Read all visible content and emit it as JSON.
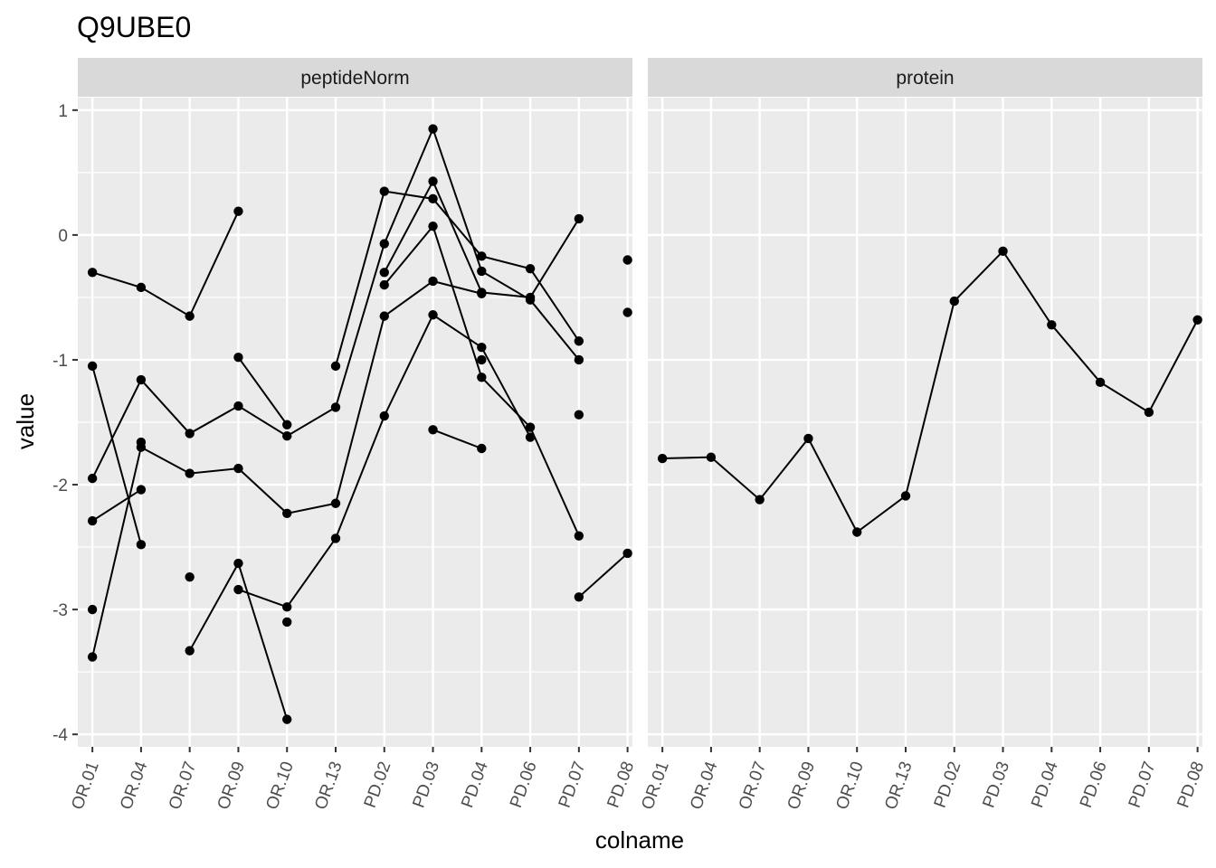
{
  "chart_data": {
    "type": "line",
    "title": "Q9UBE0",
    "xlabel": "colname",
    "ylabel": "value",
    "ylim": [
      -4.1,
      1.1
    ],
    "yticks": [
      1,
      0,
      -1,
      -2,
      -3,
      -4
    ],
    "grid": true,
    "categories": [
      "OR.01",
      "OR.04",
      "OR.07",
      "OR.09",
      "OR.10",
      "OR.13",
      "PD.02",
      "PD.03",
      "PD.04",
      "PD.06",
      "PD.07",
      "PD.08"
    ],
    "panels": [
      {
        "name": "peptideNorm",
        "series": [
          {
            "values": [
              -0.3,
              -0.42,
              -0.65,
              0.19,
              null,
              null,
              null,
              null,
              null,
              null,
              null,
              null
            ]
          },
          {
            "values": [
              null,
              null,
              null,
              null,
              null,
              -1.05,
              0.35,
              0.29,
              -0.17,
              -0.27,
              -0.85,
              null
            ]
          },
          {
            "values": [
              -1.95,
              -1.16,
              -1.59,
              -1.37,
              -1.61,
              -1.38,
              -0.07,
              0.85,
              -0.29,
              -0.52,
              -1.0,
              null
            ]
          },
          {
            "values": [
              -2.29,
              -2.04,
              null,
              -0.98,
              -1.52,
              null,
              -0.3,
              0.43,
              -0.46,
              -0.5,
              0.13,
              null
            ]
          },
          {
            "values": [
              -1.05,
              -2.48,
              null,
              null,
              null,
              null,
              -0.4,
              0.07,
              -1.14,
              -1.54,
              -2.41,
              null
            ]
          },
          {
            "values": [
              -3.38,
              -1.7,
              -1.91,
              -1.87,
              -2.23,
              -2.15,
              -0.65,
              -0.37,
              -0.47,
              null,
              null,
              null
            ]
          },
          {
            "values": [
              null,
              -1.66,
              null,
              null,
              null,
              null,
              null,
              null,
              null,
              null,
              null,
              null
            ]
          },
          {
            "values": [
              null,
              null,
              -3.33,
              -2.63,
              -3.88,
              null,
              null,
              null,
              null,
              null,
              null,
              null
            ]
          },
          {
            "values": [
              null,
              null,
              null,
              -2.84,
              -2.98,
              -2.43,
              -1.45,
              -0.64,
              -0.9,
              -1.62,
              null,
              null
            ]
          },
          {
            "values": [
              null,
              null,
              null,
              null,
              null,
              null,
              null,
              -1.56,
              -1.71,
              null,
              null,
              null
            ]
          },
          {
            "values": [
              null,
              null,
              null,
              null,
              null,
              null,
              null,
              null,
              null,
              null,
              -2.9,
              -2.55
            ]
          },
          {
            "values": [
              null,
              null,
              null,
              null,
              null,
              null,
              null,
              null,
              null,
              null,
              -1.44,
              null
            ]
          },
          {
            "values": [
              null,
              null,
              null,
              null,
              null,
              null,
              null,
              null,
              null,
              null,
              null,
              -0.2
            ]
          },
          {
            "values": [
              null,
              null,
              null,
              null,
              null,
              null,
              null,
              null,
              null,
              null,
              null,
              -0.62
            ]
          },
          {
            "values": [
              -3.0,
              null,
              null,
              null,
              null,
              null,
              null,
              null,
              null,
              null,
              null,
              null
            ]
          },
          {
            "values": [
              null,
              null,
              -2.74,
              null,
              null,
              null,
              null,
              null,
              null,
              null,
              null,
              null
            ]
          },
          {
            "values": [
              null,
              null,
              null,
              null,
              -3.1,
              null,
              null,
              null,
              null,
              null,
              null,
              null
            ]
          },
          {
            "values": [
              null,
              null,
              null,
              null,
              null,
              null,
              null,
              null,
              -1.0,
              null,
              null,
              null
            ]
          }
        ]
      },
      {
        "name": "protein",
        "series": [
          {
            "values": [
              -1.79,
              -1.78,
              -2.12,
              -1.63,
              -2.38,
              -2.09,
              -0.53,
              -0.13,
              -0.72,
              -1.18,
              -1.42,
              -0.68
            ]
          }
        ]
      }
    ]
  }
}
